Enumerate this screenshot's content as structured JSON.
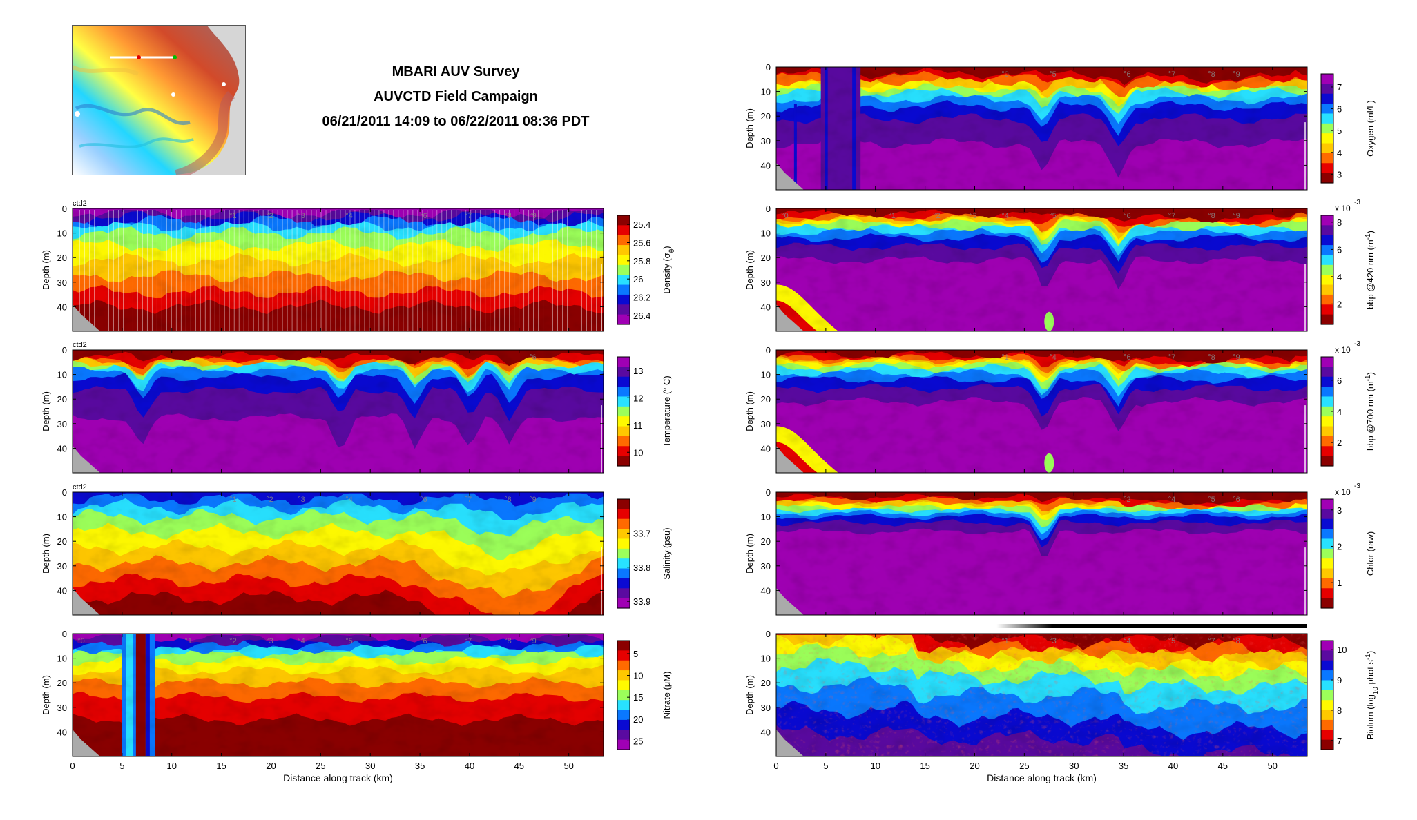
{
  "header": {
    "title_line1": "MBARI AUV Survey",
    "title_line2": "AUVCTD Field Campaign",
    "title_line3": "06/21/2011 14:09 to 06/22/2011 08:36 PDT"
  },
  "colors": {
    "colormap": [
      "#8b0000",
      "#e60000",
      "#ff6a00",
      "#ffc800",
      "#fffa00",
      "#9cff5a",
      "#28e1ff",
      "#0a78ff",
      "#0a0ad2",
      "#5a0aa0",
      "#a000b4"
    ],
    "background": "#ffffff",
    "seafloor": "#aaaaaa"
  },
  "minimap": {
    "icon": "bathymetry-map-icon"
  },
  "axes_common": {
    "ylabel": "Depth (m)",
    "xlabel": "Distance along track (km)",
    "xticks": [
      "0",
      "5",
      "10",
      "15",
      "20",
      "25",
      "30",
      "35",
      "40",
      "45",
      "50"
    ],
    "yticks": [
      "0",
      "10",
      "20",
      "30",
      "40"
    ],
    "xlim": [
      0,
      53.5
    ],
    "ylim": [
      0,
      50
    ]
  },
  "chart_data": [
    {
      "id": "density",
      "type": "heatmap",
      "platform_label": "ctd2",
      "clabel_parts": [
        "Density (σ",
        "θ",
        ")"
      ],
      "cticks": [
        "25.4",
        "25.6",
        "25.8",
        "26",
        "26.2",
        "26.4"
      ],
      "cticks_values": [
        25.4,
        25.6,
        25.8,
        26.0,
        26.2,
        26.4
      ],
      "clim": [
        25.3,
        26.5
      ],
      "cbar_reversed": true,
      "profile_labels": [
        "1",
        "2",
        "3",
        "4",
        "6",
        "7",
        "8",
        "9"
      ]
    },
    {
      "id": "temperature",
      "type": "heatmap",
      "platform_label": "ctd2",
      "clabel_parts": [
        "Temperature (° C)"
      ],
      "cticks": [
        "10",
        "11",
        "12",
        "13"
      ],
      "cticks_values": [
        10,
        11,
        12,
        13
      ],
      "clim": [
        9.5,
        13.5
      ],
      "profile_labels": [
        "6"
      ]
    },
    {
      "id": "salinity",
      "type": "heatmap",
      "platform_label": "ctd2",
      "clabel_parts": [
        "Salinity (psu)"
      ],
      "cticks": [
        "33.7",
        "33.8",
        "33.9"
      ],
      "cticks_values": [
        33.7,
        33.8,
        33.9
      ],
      "clim": [
        33.6,
        33.92
      ],
      "cbar_reversed": true,
      "profile_labels": [
        "1",
        "2",
        "3",
        "4",
        "6",
        "7",
        "8",
        "9"
      ]
    },
    {
      "id": "nitrate",
      "type": "heatmap",
      "platform_label": "",
      "clabel_parts": [
        "Nitrate (μM)"
      ],
      "cticks": [
        "5",
        "10",
        "15",
        "20",
        "25"
      ],
      "cticks_values": [
        5,
        10,
        15,
        20,
        25
      ],
      "clim": [
        2,
        27
      ],
      "cbar_reversed": true,
      "profile_labels": [
        "0",
        "1",
        "2",
        "3",
        "4",
        "5",
        "6",
        "7",
        "8",
        "9"
      ]
    },
    {
      "id": "oxygen",
      "type": "heatmap",
      "platform_label": "",
      "clabel_parts": [
        "Oxygen (ml/L)"
      ],
      "cticks": [
        "3",
        "4",
        "5",
        "6",
        "7"
      ],
      "cticks_values": [
        3,
        4,
        5,
        6,
        7
      ],
      "clim": [
        2.6,
        7.6
      ],
      "profile_labels": [
        "0",
        "5",
        "6",
        "7",
        "8",
        "9"
      ]
    },
    {
      "id": "bbp420",
      "type": "heatmap",
      "platform_label": "",
      "clabel_parts": [
        "bbp @420 nm (m",
        "-1",
        ")"
      ],
      "cbar_exponent": "x 10",
      "cbar_exponent_power": "-3",
      "cticks": [
        "2",
        "4",
        "6",
        "8"
      ],
      "cticks_values": [
        2,
        4,
        6,
        8
      ],
      "clim": [
        0.5,
        8.5
      ],
      "profile_labels": [
        "0",
        "1",
        "2",
        "3",
        "4",
        "5",
        "6",
        "7",
        "8",
        "9"
      ]
    },
    {
      "id": "bbp700",
      "type": "heatmap",
      "platform_label": "",
      "clabel_parts": [
        "bbp @700 nm (m",
        "-1",
        ")"
      ],
      "cbar_exponent": "x 10",
      "cbar_exponent_power": "-3",
      "cticks": [
        "2",
        "4",
        "6"
      ],
      "cticks_values": [
        2,
        4,
        6
      ],
      "clim": [
        0.5,
        7.5
      ],
      "profile_labels": [
        "1",
        "4",
        "6",
        "7",
        "8",
        "9"
      ]
    },
    {
      "id": "chlor",
      "type": "heatmap",
      "platform_label": "",
      "clabel_parts": [
        "Chlor (raw)"
      ],
      "cbar_exponent": "x 10",
      "cbar_exponent_power": "-3",
      "cticks": [
        "1",
        "2",
        "3"
      ],
      "cticks_values": [
        1,
        2,
        3
      ],
      "clim": [
        0.3,
        3.3
      ],
      "profile_labels": [
        "2",
        "4",
        "5",
        "6"
      ]
    },
    {
      "id": "biolum",
      "type": "heatmap",
      "platform_label": "",
      "clabel_parts": [
        "Biolum (log",
        "10",
        " phot s",
        "-1",
        ")"
      ],
      "cticks": [
        "7",
        "8",
        "9",
        "10"
      ],
      "cticks_values": [
        7,
        8,
        9,
        10
      ],
      "clim": [
        6.7,
        10.3
      ],
      "profile_labels": [
        "1",
        "3",
        "4",
        "5",
        "7",
        "8"
      ]
    }
  ]
}
